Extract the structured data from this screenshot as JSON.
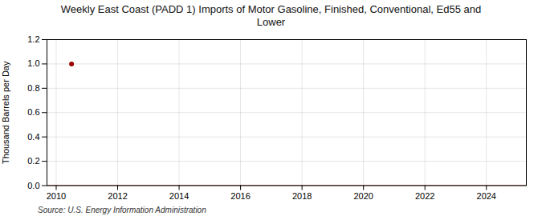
{
  "chart_data": {
    "type": "line",
    "title": "Weekly East Coast (PADD 1) Imports of Motor Gasoline, Finished, Conventional, Ed55 and\nLower",
    "ylabel": "Thousand Barrels per Day",
    "source": "Source: U.S. Energy Information Administration",
    "series": [
      {
        "type": "line",
        "color": "#8B0000",
        "x": [
          2009.7,
          2025.3
        ],
        "values": [
          0.0,
          0.0
        ]
      },
      {
        "type": "scatter",
        "color": "#9B0000",
        "marker": "circle",
        "x": [
          2010.5
        ],
        "values": [
          1.0
        ]
      }
    ],
    "xlim": [
      2009.7,
      2025.3
    ],
    "xticks": [
      2010,
      2012,
      2014,
      2016,
      2018,
      2020,
      2022,
      2024
    ],
    "ylim": [
      0.0,
      1.2
    ],
    "yticks": [
      {
        "value": 0.0,
        "label": "0.0"
      },
      0.2,
      0.4,
      0.6,
      0.8,
      {
        "value": 1.0,
        "label": "1.0"
      },
      1.2
    ],
    "grid": true
  }
}
